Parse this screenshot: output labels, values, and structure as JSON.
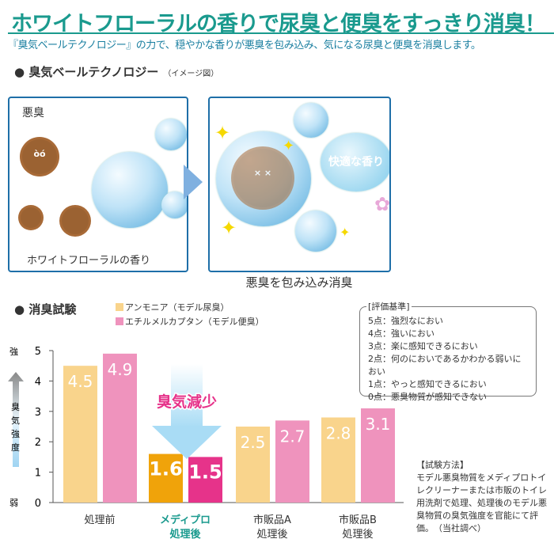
{
  "header": {
    "title": "ホワイトフローラルの香りで尿臭と便臭をすっきり消臭！",
    "subtitle": "『臭気ベールテクノロジー』の力で、穏やかな香りが悪臭を包み込み、気になる尿臭と便臭を消臭します。"
  },
  "illustration": {
    "section_title": "臭気ベールテクノロジー",
    "section_note": "（イメージ図）",
    "left_label_top": "悪臭",
    "left_label_bottom": "ホワイトフローラルの香り",
    "right_bubble_label": "快適な香り",
    "caption": "悪臭を包み込み消臭"
  },
  "test": {
    "section_title": "消臭試験",
    "reduction_label": "臭気減少",
    "y_axis": {
      "top": "強",
      "bottom": "弱",
      "label": "臭気強度"
    },
    "criteria": {
      "title": "[評価基準]",
      "items": [
        "5点：強烈なにおい",
        "4点：強いにおい",
        "3点：楽に感知できるにおい",
        "2点：何のにおいであるかわかる弱いにおい",
        "1点：やっと感知できるにおい",
        "0点：悪臭物質が感知できない"
      ]
    },
    "method": {
      "title": "【試験方法】",
      "text": "モデル悪臭物質をメディプロトイレクリーナーまたは市販のトイレ用洗剤で処理、処理後のモデル悪臭物質の臭気強度を官能にて評価。　（当社調べ）"
    }
  },
  "chart_data": {
    "type": "bar",
    "categories": [
      "処理前",
      "メディプロ 処理後",
      "市販品A 処理後",
      "市販品B 処理後"
    ],
    "series": [
      {
        "name": "アンモニア（モデル尿臭）",
        "values": [
          4.5,
          1.6,
          2.5,
          2.8
        ],
        "color": "#f9d48c",
        "highlight_color": "#f0a30a"
      },
      {
        "name": "エチルメルカプタン（モデル便臭）",
        "values": [
          4.9,
          1.5,
          2.7,
          3.1
        ],
        "color": "#ef93bd",
        "highlight_color": "#e6338a"
      }
    ],
    "highlight_category": 1,
    "ylim": [
      0,
      5
    ],
    "yticks": [
      "0",
      "1",
      "2",
      "3",
      "4",
      "5"
    ],
    "ylabel": "臭気強度",
    "legend": "top",
    "accent": "#1a9a8e"
  }
}
